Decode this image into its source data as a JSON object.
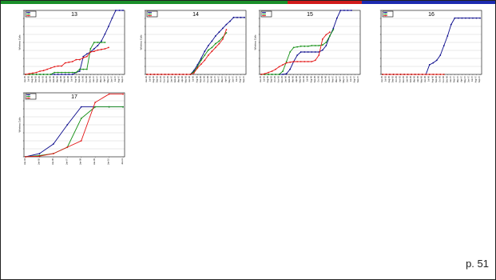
{
  "page": {
    "number_label": "p. 51",
    "topbar_colors": [
      "#1a8f2a",
      "#d11b1b",
      "#1d2bb0"
    ]
  },
  "series_colors": [
    "#0a0a8c",
    "#138f13",
    "#e31515"
  ],
  "chart_data": [
    {
      "type": "line",
      "title": "13",
      "ylabel": "Wireless Calls",
      "categories": [
        "Jun-05",
        "Jul-05",
        "Aug-05",
        "Sep-05",
        "Oct-05",
        "Nov-05",
        "Dec-05",
        "Jan-06",
        "Feb-06",
        "Mar-06",
        "Apr-06",
        "May-06",
        "Jun-06",
        "Jul-06",
        "Aug-06",
        "Sep-06",
        "Oct-06",
        "Nov-06",
        "Dec-06",
        "Jan-07",
        "Feb-07",
        "Mar-07",
        "Apr-07",
        "May-07",
        "Jun-07",
        "Jul-07",
        "Aug-07",
        "Sep-07"
      ],
      "ylim": [
        0,
        100
      ],
      "series": [
        {
          "values": [
            0,
            0,
            0,
            0,
            0,
            0,
            0,
            0,
            0,
            0,
            0,
            0,
            0,
            0,
            3,
            5,
            28,
            32,
            35,
            40,
            45,
            52,
            63,
            75,
            88,
            100,
            100,
            100
          ]
        },
        {
          "values": [
            0,
            0,
            0,
            0,
            0,
            0,
            0,
            0,
            3,
            3,
            3,
            3,
            3,
            3,
            3,
            8,
            8,
            8,
            40,
            50,
            50,
            50,
            50,
            null,
            null,
            null,
            null,
            null
          ]
        },
        {
          "values": [
            0,
            1,
            2,
            3,
            5,
            6,
            8,
            10,
            12,
            13,
            13,
            18,
            19,
            20,
            23,
            23,
            26,
            28,
            35,
            36,
            38,
            39,
            40,
            42,
            null,
            null,
            null,
            null
          ]
        }
      ]
    },
    {
      "type": "line",
      "title": "14",
      "ylabel": "Wireless Calls",
      "categories": [
        "Jun-05",
        "Jul-05",
        "Aug-05",
        "Sep-05",
        "Oct-05",
        "Nov-05",
        "Dec-05",
        "Jan-06",
        "Feb-06",
        "Mar-06",
        "Apr-06",
        "May-06",
        "Jun-06",
        "Jul-06",
        "Aug-06",
        "Sep-06",
        "Oct-06",
        "Nov-06",
        "Dec-06",
        "Jan-07",
        "Feb-07",
        "Mar-07",
        "Apr-07",
        "May-07",
        "Jun-07",
        "Jul-07",
        "Aug-07",
        "Sep-07"
      ],
      "ylim": [
        0,
        100
      ],
      "series": [
        {
          "values": [
            0,
            0,
            0,
            0,
            0,
            0,
            0,
            0,
            0,
            0,
            0,
            0,
            0,
            6,
            15,
            25,
            36,
            45,
            52,
            60,
            66,
            72,
            78,
            83,
            89,
            89,
            89,
            89
          ]
        },
        {
          "values": [
            0,
            0,
            0,
            0,
            0,
            0,
            0,
            0,
            0,
            0,
            0,
            0,
            0,
            4,
            12,
            22,
            30,
            38,
            42,
            48,
            52,
            58,
            65,
            null,
            null,
            null,
            null,
            null
          ]
        },
        {
          "values": [
            0,
            0,
            0,
            0,
            0,
            0,
            0,
            0,
            0,
            0,
            0,
            0,
            0,
            2,
            10,
            16,
            22,
            30,
            36,
            42,
            48,
            55,
            70,
            null,
            null,
            null,
            null,
            null
          ]
        }
      ]
    },
    {
      "type": "line",
      "title": "15",
      "ylabel": "Wireless Calls",
      "categories": [
        "Jun-05",
        "Jul-05",
        "Aug-05",
        "Sep-05",
        "Oct-05",
        "Nov-05",
        "Dec-05",
        "Jan-06",
        "Feb-06",
        "Mar-06",
        "Apr-06",
        "May-06",
        "Jun-06",
        "Jul-06",
        "Aug-06",
        "Sep-06",
        "Oct-06",
        "Nov-06",
        "Dec-06",
        "Jan-07",
        "Feb-07",
        "Mar-07",
        "Apr-07",
        "May-07",
        "Jun-07",
        "Jul-07",
        "Aug-07",
        "Sep-07"
      ],
      "ylim": [
        0,
        100
      ],
      "series": [
        {
          "values": [
            0,
            0,
            0,
            0,
            0,
            0,
            0,
            1,
            8,
            20,
            30,
            35,
            35,
            35,
            35,
            35,
            35,
            38,
            45,
            60,
            72,
            88,
            100,
            100,
            100,
            100,
            null,
            null
          ]
        },
        {
          "values": [
            0,
            0,
            0,
            0,
            0,
            0,
            5,
            20,
            35,
            42,
            43,
            44,
            44,
            44,
            45,
            45,
            45,
            46,
            50,
            60,
            70,
            null,
            null,
            null,
            null,
            null,
            null,
            null
          ]
        },
        {
          "values": [
            0,
            1,
            3,
            5,
            8,
            12,
            15,
            18,
            19,
            20,
            20,
            20,
            20,
            20,
            20,
            22,
            30,
            55,
            62,
            66,
            null,
            null,
            null,
            null,
            null,
            null,
            null,
            null
          ]
        }
      ]
    },
    {
      "type": "line",
      "title": "16",
      "ylabel": "",
      "categories": [
        "Jun-05",
        "Jul-05",
        "Aug-05",
        "Sep-05",
        "Oct-05",
        "Nov-05",
        "Dec-05",
        "Jan-06",
        "Feb-06",
        "Mar-06",
        "Apr-06",
        "May-06",
        "Jun-06",
        "Jul-06",
        "Aug-06",
        "Sep-06",
        "Oct-06",
        "Nov-06",
        "Dec-06",
        "Jan-07",
        "Feb-07",
        "Mar-07",
        "Apr-07",
        "May-07",
        "Jun-07",
        "Jul-07",
        "Aug-07",
        "Sep-07"
      ],
      "ylim": [
        0,
        100
      ],
      "series": [
        {
          "values": [
            0,
            0,
            0,
            0,
            0,
            0,
            0,
            0,
            0,
            0,
            0,
            0,
            0,
            15,
            18,
            22,
            30,
            45,
            60,
            78,
            88,
            88,
            88,
            88,
            88,
            88,
            88,
            88
          ]
        },
        {
          "values": [
            0,
            0,
            0,
            0,
            0,
            0,
            0,
            0,
            0,
            0,
            0,
            0,
            0,
            0,
            0,
            0,
            0,
            0,
            null,
            null,
            null,
            null,
            null,
            null,
            null,
            null,
            null,
            null
          ]
        },
        {
          "values": [
            0,
            0,
            0,
            0,
            0,
            0,
            0,
            0,
            0,
            0,
            0,
            0,
            0,
            0,
            0,
            0,
            0,
            0,
            null,
            null,
            null,
            null,
            null,
            null,
            null,
            null,
            null,
            null
          ]
        }
      ]
    },
    {
      "type": "line",
      "title": "17",
      "ylabel": "Wireless Calls",
      "categories": [
        "Jan-04",
        "Jan-05",
        "Jan-06",
        "Jan-07",
        "Jan-08",
        "Jan-09",
        "Jan-10",
        "Jan-11"
      ],
      "ylim": [
        0,
        100
      ],
      "series": [
        {
          "values": [
            0,
            5,
            20,
            50,
            78,
            78,
            78,
            78
          ]
        },
        {
          "values": [
            0,
            2,
            5,
            15,
            60,
            78,
            78,
            78
          ]
        },
        {
          "values": [
            0,
            1,
            5,
            15,
            25,
            85,
            98,
            98
          ]
        }
      ]
    }
  ]
}
